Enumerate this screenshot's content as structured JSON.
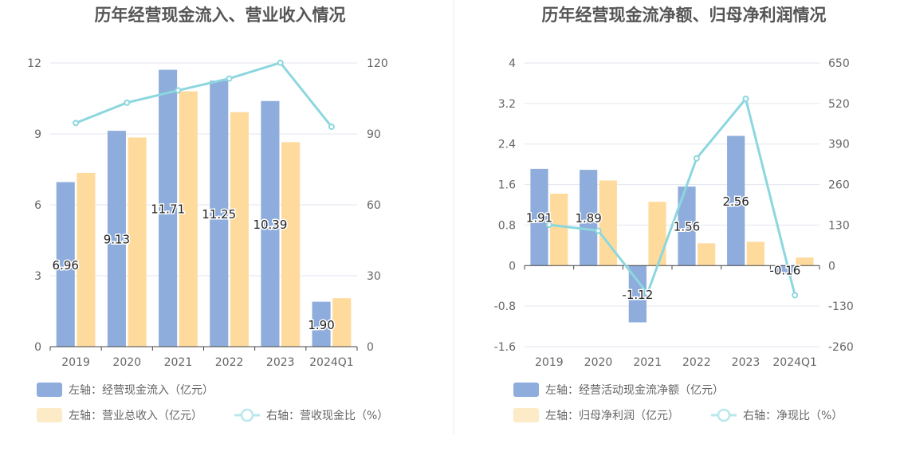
{
  "colors": {
    "bar_primary": "#8eaddc",
    "bar_secondary": "#fedb9d",
    "line": "#8cd7de",
    "axis_text": "#666666",
    "grid": "#e3e6ef",
    "title": "#555555",
    "divider": "#e8e8e8"
  },
  "chart_data": [
    {
      "type": "bar",
      "title": "历年经营现金流入、营业收入情况",
      "categories": [
        "2019",
        "2020",
        "2021",
        "2022",
        "2023",
        "2024Q1"
      ],
      "left_axis": {
        "ticks": [
          "0",
          "3",
          "6",
          "9",
          "12"
        ],
        "min": 0,
        "max": 12
      },
      "right_axis": {
        "ticks": [
          "0",
          "30",
          "60",
          "90",
          "120"
        ],
        "min": 0,
        "max": 120
      },
      "series": [
        {
          "name": "左轴：经营现金流入（亿元）",
          "axis": "left",
          "kind": "bar",
          "color": "#8eaddc",
          "values": [
            6.96,
            9.13,
            11.71,
            11.25,
            10.39,
            1.9
          ],
          "labels": [
            "6.96",
            "9.13",
            "11.71",
            "11.25",
            "10.39",
            "1.90"
          ]
        },
        {
          "name": "左轴：营业总收入（亿元）",
          "axis": "left",
          "kind": "bar",
          "color": "#fedb9d",
          "values": [
            7.35,
            8.85,
            10.8,
            9.92,
            8.65,
            2.05
          ]
        },
        {
          "name": "右轴：营收现金比（%）",
          "axis": "right",
          "kind": "line",
          "color": "#8cd7de",
          "values": [
            94.6,
            103.2,
            108.4,
            113.4,
            120.1,
            93.0
          ]
        }
      ]
    },
    {
      "type": "bar",
      "title": "历年经营现金流净额、归母净利润情况",
      "categories": [
        "2019",
        "2020",
        "2021",
        "2022",
        "2023",
        "2024Q1"
      ],
      "left_axis": {
        "ticks": [
          "-1.6",
          "-0.8",
          "0",
          "0.8",
          "1.6",
          "2.4",
          "3.2",
          "4"
        ],
        "min": -1.6,
        "max": 4
      },
      "right_axis": {
        "ticks": [
          "-260",
          "-130",
          "0",
          "130",
          "260",
          "390",
          "520",
          "650"
        ],
        "min": -260,
        "max": 650
      },
      "series": [
        {
          "name": "左轴：经营活动现金流净额（亿元）",
          "axis": "left",
          "kind": "bar",
          "color": "#8eaddc",
          "values": [
            1.91,
            1.89,
            -1.12,
            1.56,
            2.56,
            -0.16
          ],
          "labels": [
            "1.91",
            "1.89",
            "-1.12",
            "1.56",
            "2.56",
            "-0.16"
          ]
        },
        {
          "name": "左轴：归母净利润（亿元）",
          "axis": "left",
          "kind": "bar",
          "color": "#fedb9d",
          "values": [
            1.42,
            1.68,
            1.26,
            0.44,
            0.47,
            0.16
          ]
        },
        {
          "name": "右轴：净现比（%）",
          "axis": "right",
          "kind": "line",
          "color": "#8cd7de",
          "values": [
            131,
            112,
            -89,
            344,
            535,
            -95
          ]
        }
      ]
    }
  ]
}
